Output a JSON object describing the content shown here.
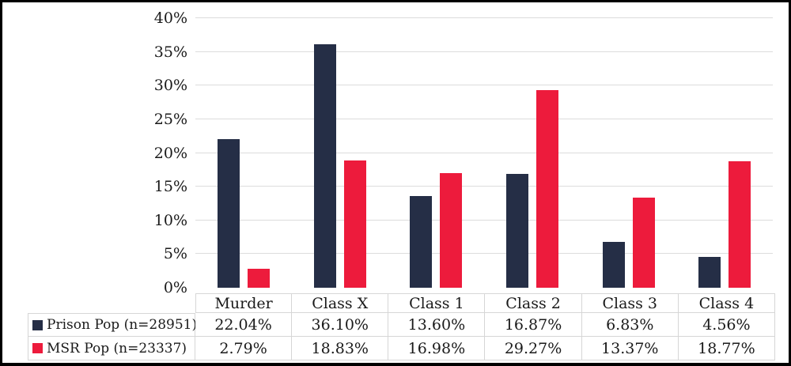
{
  "chart_data": {
    "type": "bar",
    "title": "",
    "categories": [
      "Murder",
      "Class X",
      "Class 1",
      "Class 2",
      "Class 3",
      "Class 4"
    ],
    "series": [
      {
        "name": "Prison Pop (n=28951)",
        "color": "#252e46",
        "values": [
          22.04,
          36.1,
          13.6,
          16.87,
          6.83,
          4.56
        ]
      },
      {
        "name": "MSR Pop (n=23337)",
        "color": "#ed1b3c",
        "values": [
          2.79,
          18.83,
          16.98,
          29.27,
          13.37,
          18.77
        ]
      }
    ],
    "table_values": [
      [
        "22.04%",
        "36.10%",
        "13.60%",
        "16.87%",
        "6.83%",
        "4.56%"
      ],
      [
        "2.79%",
        "18.83%",
        "16.98%",
        "29.27%",
        "13.37%",
        "18.77%"
      ]
    ],
    "y_axis": {
      "min": 0,
      "max": 40,
      "step": 5,
      "tick_labels": [
        "0%",
        "5%",
        "10%",
        "15%",
        "20%",
        "25%",
        "30%",
        "35%",
        "40%"
      ]
    },
    "xlabel": "",
    "ylabel": "",
    "grid": "horizontal",
    "legend_position": "table-left"
  },
  "colors": {
    "series_prison": "#252e46",
    "series_msr": "#ed1b3c",
    "gridline": "#dcdcdc",
    "table_border": "#d6d6d6",
    "frame_border": "#000000",
    "background": "#ffffff",
    "text": "#1a1a1a"
  }
}
